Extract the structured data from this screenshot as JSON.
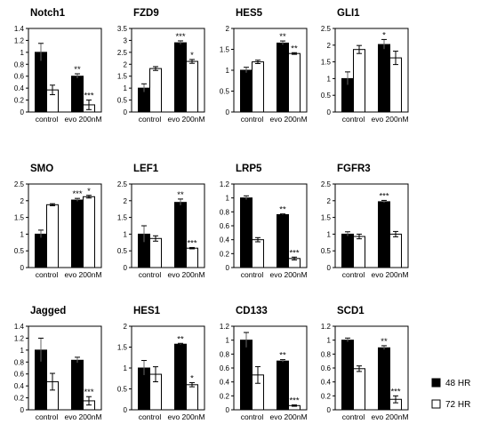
{
  "legend": {
    "series": [
      {
        "name": "48 HR",
        "color": "#000000"
      },
      {
        "name": "72 HR",
        "color": "#ffffff"
      }
    ]
  },
  "chart_data": [
    {
      "type": "bar",
      "title": "Notch1",
      "categories": [
        "control",
        "evo 200nM"
      ],
      "ylim": [
        0,
        1.4
      ],
      "yticks": [
        0,
        0.2,
        0.4,
        0.6,
        0.8,
        1,
        1.2,
        1.4
      ],
      "series": [
        {
          "name": "48 HR",
          "values": [
            1.0,
            0.6
          ],
          "errors": [
            0.15,
            0.04
          ],
          "sig": [
            "",
            "**"
          ]
        },
        {
          "name": "72 HR",
          "values": [
            0.37,
            0.12
          ],
          "errors": [
            0.08,
            0.08
          ],
          "sig": [
            "",
            "***"
          ]
        }
      ]
    },
    {
      "type": "bar",
      "title": "FZD9",
      "categories": [
        "control",
        "evo 200nM"
      ],
      "ylim": [
        0,
        3.5
      ],
      "yticks": [
        0,
        0.5,
        1,
        1.5,
        2,
        2.5,
        3,
        3.5
      ],
      "series": [
        {
          "name": "48 HR",
          "values": [
            1.0,
            2.9
          ],
          "errors": [
            0.18,
            0.08
          ],
          "sig": [
            "",
            "***"
          ]
        },
        {
          "name": "72 HR",
          "values": [
            1.82,
            2.12
          ],
          "errors": [
            0.08,
            0.08
          ],
          "sig": [
            "",
            "*"
          ]
        }
      ]
    },
    {
      "type": "bar",
      "title": "HES5",
      "categories": [
        "control",
        "evo 200nM"
      ],
      "ylim": [
        0,
        2
      ],
      "yticks": [
        0,
        0.5,
        1,
        1.5,
        2
      ],
      "series": [
        {
          "name": "48 HR",
          "values": [
            1.0,
            1.65
          ],
          "errors": [
            0.07,
            0.05
          ],
          "sig": [
            "",
            "**"
          ]
        },
        {
          "name": "72 HR",
          "values": [
            1.2,
            1.4
          ],
          "errors": [
            0.04,
            0.02
          ],
          "sig": [
            "",
            "**"
          ]
        }
      ]
    },
    {
      "type": "bar",
      "title": "GLI1",
      "categories": [
        "control",
        "evo 200nM"
      ],
      "ylim": [
        0,
        2.5
      ],
      "yticks": [
        0,
        0.5,
        1,
        1.5,
        2,
        2.5
      ],
      "series": [
        {
          "name": "48 HR",
          "values": [
            1.0,
            2.02
          ],
          "errors": [
            0.2,
            0.15
          ],
          "sig": [
            "",
            "*"
          ]
        },
        {
          "name": "72 HR",
          "values": [
            1.87,
            1.62
          ],
          "errors": [
            0.12,
            0.2
          ],
          "sig": [
            "",
            ""
          ]
        }
      ]
    },
    {
      "type": "bar",
      "title": "SMO",
      "categories": [
        "control",
        "evo 200nM"
      ],
      "ylim": [
        0,
        2.5
      ],
      "yticks": [
        0,
        0.5,
        1,
        1.5,
        2,
        2.5
      ],
      "series": [
        {
          "name": "48 HR",
          "values": [
            1.0,
            2.02
          ],
          "errors": [
            0.12,
            0.05
          ],
          "sig": [
            "",
            "***"
          ]
        },
        {
          "name": "72 HR",
          "values": [
            1.88,
            2.12
          ],
          "errors": [
            0.03,
            0.04
          ],
          "sig": [
            "",
            "*"
          ]
        }
      ]
    },
    {
      "type": "bar",
      "title": "LEF1",
      "categories": [
        "control",
        "evo 200nM"
      ],
      "ylim": [
        0,
        2.5
      ],
      "yticks": [
        0,
        0.5,
        1,
        1.5,
        2,
        2.5
      ],
      "series": [
        {
          "name": "48 HR",
          "values": [
            1.0,
            1.95
          ],
          "errors": [
            0.25,
            0.1
          ],
          "sig": [
            "",
            "**"
          ]
        },
        {
          "name": "72 HR",
          "values": [
            0.87,
            0.58
          ],
          "errors": [
            0.08,
            0.02
          ],
          "sig": [
            "",
            "***"
          ]
        }
      ]
    },
    {
      "type": "bar",
      "title": "LRP5",
      "categories": [
        "control",
        "evo 200nM"
      ],
      "ylim": [
        0,
        1.2
      ],
      "yticks": [
        0,
        0.2,
        0.4,
        0.6,
        0.8,
        1,
        1.2
      ],
      "series": [
        {
          "name": "48 HR",
          "values": [
            1.0,
            0.76
          ],
          "errors": [
            0.03,
            0.01
          ],
          "sig": [
            "",
            "**"
          ]
        },
        {
          "name": "72 HR",
          "values": [
            0.4,
            0.13
          ],
          "errors": [
            0.03,
            0.02
          ],
          "sig": [
            "",
            "***"
          ]
        }
      ]
    },
    {
      "type": "bar",
      "title": "FGFR3",
      "categories": [
        "control",
        "evo 200nM"
      ],
      "ylim": [
        0,
        2.5
      ],
      "yticks": [
        0,
        0.5,
        1,
        1.5,
        2,
        2.5
      ],
      "series": [
        {
          "name": "48 HR",
          "values": [
            1.0,
            1.97
          ],
          "errors": [
            0.07,
            0.04
          ],
          "sig": [
            "",
            "***"
          ]
        },
        {
          "name": "72 HR",
          "values": [
            0.93,
            1.0
          ],
          "errors": [
            0.07,
            0.08
          ],
          "sig": [
            "",
            ""
          ]
        }
      ]
    },
    {
      "type": "bar",
      "title": "Jagged",
      "categories": [
        "control",
        "evo 200nM"
      ],
      "ylim": [
        0,
        1.4
      ],
      "yticks": [
        0,
        0.2,
        0.4,
        0.6,
        0.8,
        1,
        1.2,
        1.4
      ],
      "series": [
        {
          "name": "48 HR",
          "values": [
            1.0,
            0.83
          ],
          "errors": [
            0.2,
            0.05
          ],
          "sig": [
            "",
            ""
          ]
        },
        {
          "name": "72 HR",
          "values": [
            0.47,
            0.15
          ],
          "errors": [
            0.14,
            0.07
          ],
          "sig": [
            "",
            "***"
          ]
        }
      ]
    },
    {
      "type": "bar",
      "title": "HES1",
      "categories": [
        "control",
        "evo 200nM"
      ],
      "ylim": [
        0,
        2
      ],
      "yticks": [
        0,
        0.5,
        1,
        1.5,
        2
      ],
      "series": [
        {
          "name": "48 HR",
          "values": [
            1.0,
            1.57
          ],
          "errors": [
            0.18,
            0.02
          ],
          "sig": [
            "",
            "**"
          ]
        },
        {
          "name": "72 HR",
          "values": [
            0.85,
            0.6
          ],
          "errors": [
            0.18,
            0.05
          ],
          "sig": [
            "",
            "*"
          ]
        }
      ]
    },
    {
      "type": "bar",
      "title": "CD133",
      "categories": [
        "control",
        "evo 200nM"
      ],
      "ylim": [
        0,
        1.2
      ],
      "yticks": [
        0,
        0.2,
        0.4,
        0.6,
        0.8,
        1,
        1.2
      ],
      "series": [
        {
          "name": "48 HR",
          "values": [
            1.0,
            0.7
          ],
          "errors": [
            0.11,
            0.02
          ],
          "sig": [
            "",
            "**"
          ]
        },
        {
          "name": "72 HR",
          "values": [
            0.5,
            0.06
          ],
          "errors": [
            0.12,
            0.01
          ],
          "sig": [
            "",
            "***"
          ]
        }
      ]
    },
    {
      "type": "bar",
      "title": "SCD1",
      "categories": [
        "control",
        "evo 200nM"
      ],
      "ylim": [
        0,
        1.2
      ],
      "yticks": [
        0,
        0.2,
        0.4,
        0.6,
        0.8,
        1,
        1.2
      ],
      "series": [
        {
          "name": "48 HR",
          "values": [
            1.0,
            0.89
          ],
          "errors": [
            0.03,
            0.03
          ],
          "sig": [
            "",
            "**"
          ]
        },
        {
          "name": "72 HR",
          "values": [
            0.59,
            0.15
          ],
          "errors": [
            0.04,
            0.05
          ],
          "sig": [
            "",
            "***"
          ]
        }
      ]
    }
  ]
}
